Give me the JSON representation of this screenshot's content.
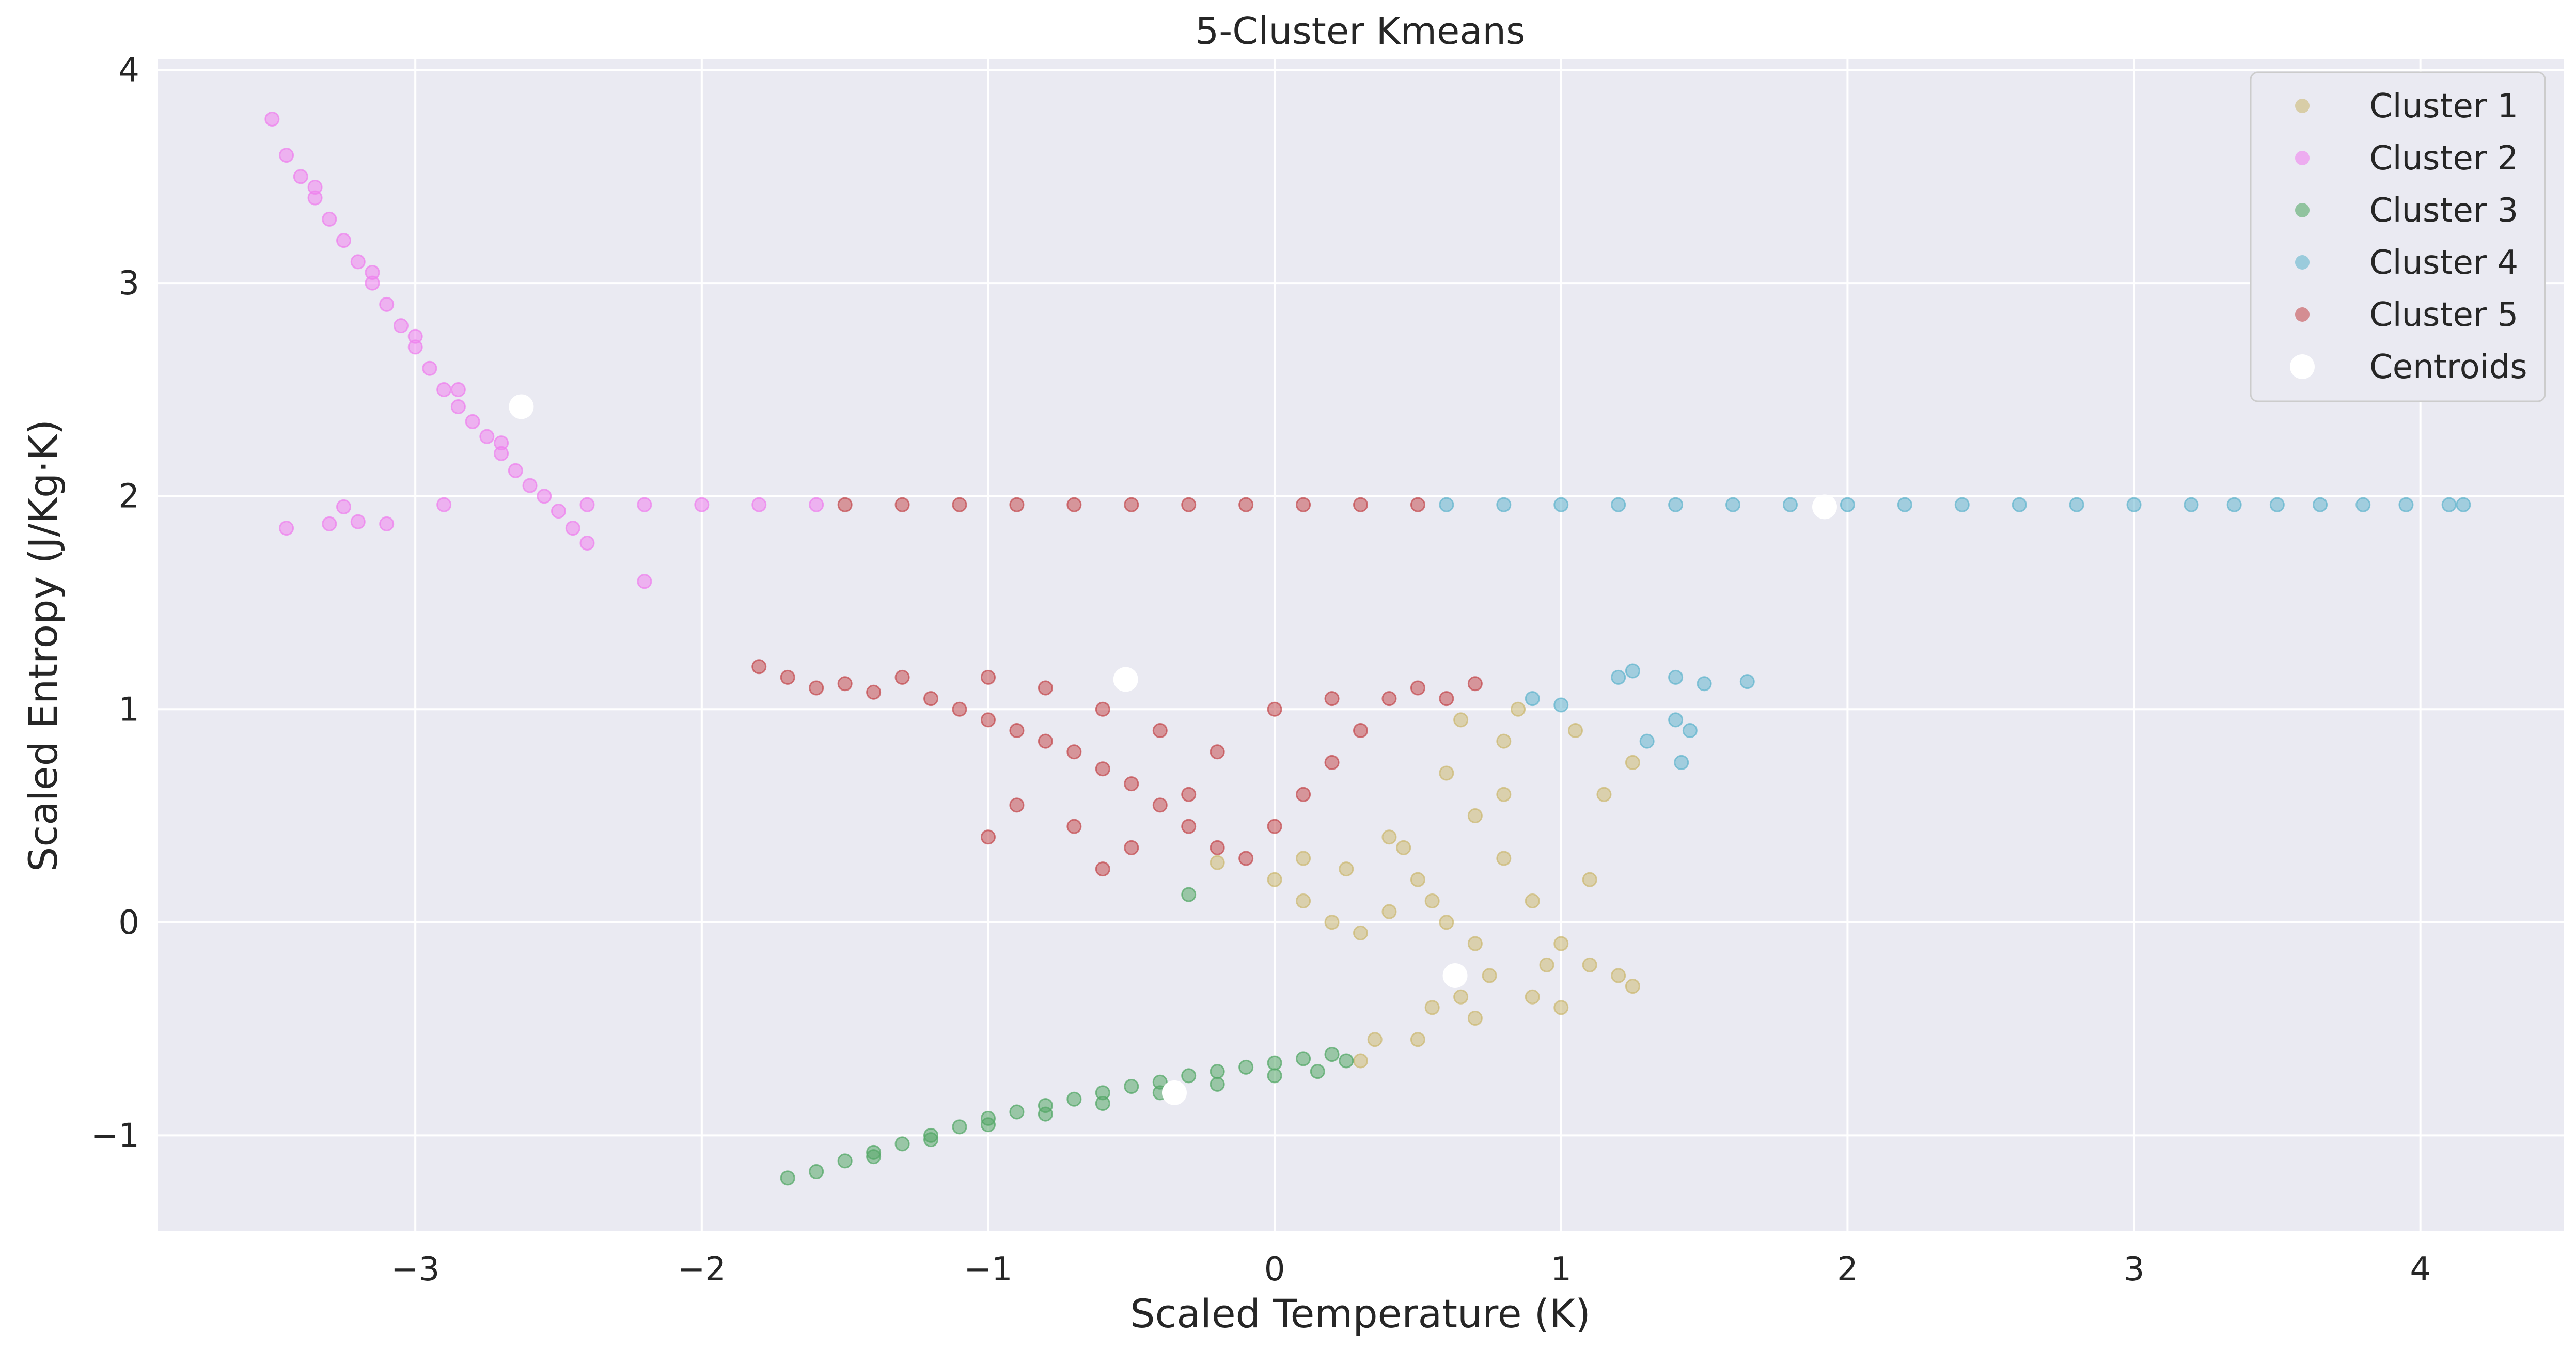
{
  "chart_data": {
    "type": "scatter",
    "title": "5-Cluster Kmeans",
    "xlabel": "Scaled Temperature (K)",
    "ylabel": "Scaled Entropy (J/Kg·K)",
    "xlim": [
      -3.9,
      4.5
    ],
    "ylim": [
      -1.45,
      4.05
    ],
    "xticks": [
      -3,
      -2,
      -1,
      0,
      1,
      2,
      3,
      4
    ],
    "xtick_labels": [
      "−3",
      "−2",
      "−1",
      "0",
      "1",
      "2",
      "3",
      "4"
    ],
    "yticks": [
      -1,
      0,
      1,
      2,
      3,
      4
    ],
    "ytick_labels": [
      "−1",
      "0",
      "1",
      "2",
      "3",
      "4"
    ],
    "grid": true,
    "legend_position": "top-right",
    "series": [
      {
        "name": "Cluster 1",
        "color": "#ccb974",
        "points": [
          [
            -0.2,
            0.28
          ],
          [
            0.0,
            0.2
          ],
          [
            0.1,
            0.1
          ],
          [
            0.2,
            0.0
          ],
          [
            0.3,
            -0.05
          ],
          [
            0.4,
            0.05
          ],
          [
            0.5,
            0.2
          ],
          [
            0.4,
            0.4
          ],
          [
            0.6,
            0.7
          ],
          [
            0.7,
            0.5
          ],
          [
            0.8,
            0.3
          ],
          [
            0.9,
            0.1
          ],
          [
            1.0,
            -0.1
          ],
          [
            1.1,
            -0.2
          ],
          [
            1.2,
            -0.25
          ],
          [
            1.25,
            -0.3
          ],
          [
            0.9,
            -0.35
          ],
          [
            0.7,
            -0.45
          ],
          [
            0.5,
            -0.55
          ],
          [
            0.3,
            -0.65
          ],
          [
            0.35,
            -0.55
          ],
          [
            0.55,
            -0.4
          ],
          [
            0.75,
            -0.25
          ],
          [
            0.95,
            -0.2
          ],
          [
            0.6,
            0.0
          ],
          [
            0.45,
            0.35
          ],
          [
            0.65,
            0.95
          ],
          [
            0.8,
            0.85
          ],
          [
            1.05,
            0.9
          ],
          [
            1.15,
            0.6
          ],
          [
            1.25,
            0.75
          ],
          [
            0.85,
            1.0
          ],
          [
            0.1,
            0.3
          ],
          [
            0.25,
            0.25
          ],
          [
            0.55,
            0.1
          ],
          [
            0.7,
            -0.1
          ],
          [
            1.0,
            -0.4
          ],
          [
            0.65,
            -0.35
          ],
          [
            0.8,
            0.6
          ],
          [
            1.1,
            0.2
          ]
        ]
      },
      {
        "name": "Cluster 2",
        "color": "#ee82ee",
        "points": [
          [
            -3.5,
            3.77
          ],
          [
            -3.45,
            3.6
          ],
          [
            -3.4,
            3.5
          ],
          [
            -3.35,
            3.4
          ],
          [
            -3.3,
            3.3
          ],
          [
            -3.25,
            3.2
          ],
          [
            -3.2,
            3.1
          ],
          [
            -3.15,
            3.0
          ],
          [
            -3.1,
            2.9
          ],
          [
            -3.05,
            2.8
          ],
          [
            -3.0,
            2.7
          ],
          [
            -2.95,
            2.6
          ],
          [
            -2.9,
            2.5
          ],
          [
            -2.85,
            2.42
          ],
          [
            -2.8,
            2.35
          ],
          [
            -2.75,
            2.28
          ],
          [
            -2.7,
            2.2
          ],
          [
            -2.65,
            2.12
          ],
          [
            -2.6,
            2.05
          ],
          [
            -2.55,
            2.0
          ],
          [
            -2.5,
            1.93
          ],
          [
            -2.45,
            1.85
          ],
          [
            -2.4,
            1.78
          ],
          [
            -2.2,
            1.6
          ],
          [
            -3.45,
            1.85
          ],
          [
            -3.3,
            1.87
          ],
          [
            -3.2,
            1.88
          ],
          [
            -3.1,
            1.87
          ],
          [
            -3.25,
            1.95
          ],
          [
            -2.9,
            1.96
          ],
          [
            -2.4,
            1.96
          ],
          [
            -2.2,
            1.96
          ],
          [
            -2.0,
            1.96
          ],
          [
            -1.8,
            1.96
          ],
          [
            -1.6,
            1.96
          ],
          [
            -3.15,
            3.05
          ],
          [
            -3.0,
            2.75
          ],
          [
            -2.85,
            2.5
          ],
          [
            -3.35,
            3.45
          ],
          [
            -2.7,
            2.25
          ]
        ]
      },
      {
        "name": "Cluster 3",
        "color": "#55a868",
        "points": [
          [
            -1.7,
            -1.2
          ],
          [
            -1.6,
            -1.17
          ],
          [
            -1.5,
            -1.12
          ],
          [
            -1.4,
            -1.08
          ],
          [
            -1.3,
            -1.04
          ],
          [
            -1.2,
            -1.0
          ],
          [
            -1.1,
            -0.96
          ],
          [
            -1.0,
            -0.92
          ],
          [
            -0.9,
            -0.89
          ],
          [
            -0.8,
            -0.86
          ],
          [
            -0.7,
            -0.83
          ],
          [
            -0.6,
            -0.8
          ],
          [
            -0.5,
            -0.77
          ],
          [
            -0.4,
            -0.75
          ],
          [
            -0.3,
            -0.72
          ],
          [
            -0.2,
            -0.7
          ],
          [
            -0.1,
            -0.68
          ],
          [
            0.0,
            -0.66
          ],
          [
            0.1,
            -0.64
          ],
          [
            0.2,
            -0.62
          ],
          [
            0.25,
            -0.65
          ],
          [
            0.15,
            -0.7
          ],
          [
            0.0,
            -0.72
          ],
          [
            -0.2,
            -0.76
          ],
          [
            -0.4,
            -0.8
          ],
          [
            -0.6,
            -0.85
          ],
          [
            -0.8,
            -0.9
          ],
          [
            -1.0,
            -0.95
          ],
          [
            -1.2,
            -1.02
          ],
          [
            -1.4,
            -1.1
          ],
          [
            -0.3,
            0.13
          ]
        ]
      },
      {
        "name": "Cluster 4",
        "color": "#64b5cd",
        "points": [
          [
            0.6,
            1.96
          ],
          [
            0.8,
            1.96
          ],
          [
            1.0,
            1.96
          ],
          [
            1.2,
            1.96
          ],
          [
            1.4,
            1.96
          ],
          [
            1.6,
            1.96
          ],
          [
            1.8,
            1.96
          ],
          [
            2.0,
            1.96
          ],
          [
            2.2,
            1.96
          ],
          [
            2.4,
            1.96
          ],
          [
            2.6,
            1.96
          ],
          [
            2.8,
            1.96
          ],
          [
            3.0,
            1.96
          ],
          [
            3.2,
            1.96
          ],
          [
            3.35,
            1.96
          ],
          [
            3.5,
            1.96
          ],
          [
            3.65,
            1.96
          ],
          [
            3.8,
            1.96
          ],
          [
            3.95,
            1.96
          ],
          [
            4.1,
            1.96
          ],
          [
            4.15,
            1.96
          ],
          [
            1.2,
            1.15
          ],
          [
            1.25,
            1.18
          ],
          [
            1.4,
            1.15
          ],
          [
            1.5,
            1.12
          ],
          [
            1.65,
            1.13
          ],
          [
            1.4,
            0.95
          ],
          [
            1.45,
            0.9
          ],
          [
            1.42,
            0.75
          ],
          [
            1.3,
            0.85
          ],
          [
            0.9,
            1.05
          ],
          [
            1.0,
            1.02
          ]
        ]
      },
      {
        "name": "Cluster 5",
        "color": "#c44e52",
        "points": [
          [
            -1.5,
            1.96
          ],
          [
            -1.3,
            1.96
          ],
          [
            -1.1,
            1.96
          ],
          [
            -0.9,
            1.96
          ],
          [
            -0.7,
            1.96
          ],
          [
            -0.5,
            1.96
          ],
          [
            -0.3,
            1.96
          ],
          [
            -0.1,
            1.96
          ],
          [
            0.1,
            1.96
          ],
          [
            0.3,
            1.96
          ],
          [
            0.5,
            1.96
          ],
          [
            -1.8,
            1.2
          ],
          [
            -1.7,
            1.15
          ],
          [
            -1.6,
            1.1
          ],
          [
            -1.5,
            1.12
          ],
          [
            -1.4,
            1.08
          ],
          [
            -1.3,
            1.15
          ],
          [
            -1.2,
            1.05
          ],
          [
            -1.1,
            1.0
          ],
          [
            -1.0,
            0.95
          ],
          [
            -0.9,
            0.9
          ],
          [
            -0.8,
            0.85
          ],
          [
            -0.7,
            0.8
          ],
          [
            -0.6,
            0.72
          ],
          [
            -0.5,
            0.65
          ],
          [
            -0.4,
            0.55
          ],
          [
            -0.3,
            0.45
          ],
          [
            -0.2,
            0.35
          ],
          [
            -0.1,
            0.3
          ],
          [
            0.0,
            0.45
          ],
          [
            0.1,
            0.6
          ],
          [
            0.2,
            0.75
          ],
          [
            0.3,
            0.9
          ],
          [
            0.4,
            1.05
          ],
          [
            0.5,
            1.1
          ],
          [
            0.6,
            1.05
          ],
          [
            0.7,
            1.12
          ],
          [
            -1.0,
            1.15
          ],
          [
            -0.8,
            1.1
          ],
          [
            -0.6,
            1.0
          ],
          [
            -0.4,
            0.9
          ],
          [
            -0.2,
            0.8
          ],
          [
            0.0,
            1.0
          ],
          [
            0.2,
            1.05
          ],
          [
            -0.9,
            0.55
          ],
          [
            -0.7,
            0.45
          ],
          [
            -1.0,
            0.4
          ],
          [
            -0.5,
            0.35
          ],
          [
            -0.6,
            0.25
          ],
          [
            -0.3,
            0.6
          ]
        ]
      },
      {
        "name": "Centroids",
        "color": "#ffffff",
        "points": [
          [
            -2.63,
            2.42
          ],
          [
            1.92,
            1.95
          ],
          [
            -0.52,
            1.14
          ],
          [
            0.63,
            -0.25
          ],
          [
            -0.35,
            -0.8
          ]
        ]
      }
    ]
  }
}
